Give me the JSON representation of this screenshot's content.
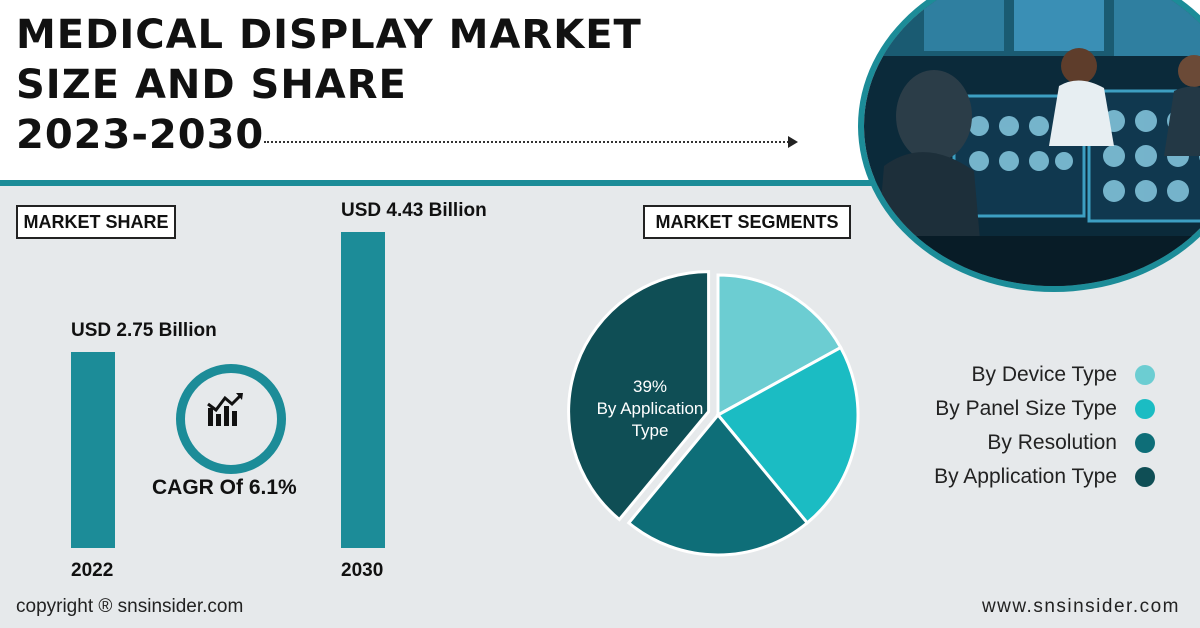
{
  "header": {
    "title_lines": [
      "MEDICAL DISPLAY MARKET",
      "SIZE AND SHARE",
      "2023-2030"
    ]
  },
  "market_share": {
    "label": "MARKET SHARE",
    "cagr": "CAGR Of 6.1%"
  },
  "market_segments": {
    "label": "MARKET SEGMENTS",
    "highlight_value": "39%",
    "highlight_label": "By Application Type"
  },
  "footer": {
    "copyright": "copyright ® snsinsider.com",
    "website": "www.snsinsider.com"
  },
  "colors": {
    "teal": "#1c8c98",
    "seg_device": "#6ccdd2",
    "seg_panel": "#1bbcc3",
    "seg_resolution": "#0e6e78",
    "seg_application": "#0f4e55"
  },
  "chart_data": [
    {
      "type": "bar",
      "categories": [
        "2022",
        "2030"
      ],
      "values": [
        2.75,
        4.43
      ],
      "data_labels": [
        "USD 2.75 Billion",
        "USD 4.43 Billion"
      ],
      "ylim": [
        0,
        4.6
      ]
    },
    {
      "type": "pie",
      "labels": [
        "By Device Type",
        "By Panel Size Type",
        "By Resolution",
        "By Application Type"
      ],
      "values": [
        17,
        22,
        22,
        39
      ],
      "legend_position": "right"
    }
  ]
}
